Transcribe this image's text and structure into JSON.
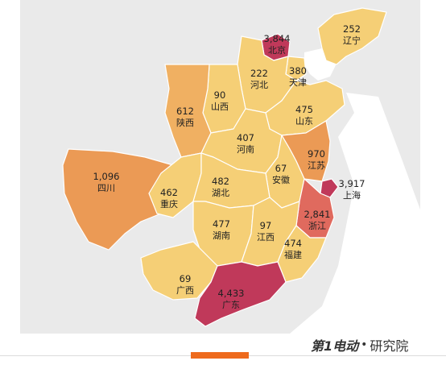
{
  "map": {
    "colors": {
      "low": "#f5cf76",
      "mid": "#f0b062",
      "high_orange": "#eb9a55",
      "red": "#e06a5e",
      "crimson": "#c0395a",
      "background": "#eaeaea",
      "sea": "#ffffff"
    },
    "provinces": [
      {
        "id": "beijing",
        "name": "北京",
        "value": "3,844",
        "color": "#c0395a"
      },
      {
        "id": "liaoning",
        "name": "辽宁",
        "value": "252",
        "color": "#f5cf76"
      },
      {
        "id": "tianjin",
        "name": "天津",
        "value": "380",
        "color": "#f5cf76"
      },
      {
        "id": "hebei",
        "name": "河北",
        "value": "222",
        "color": "#f5cf76"
      },
      {
        "id": "shanxi",
        "name": "山西",
        "value": "90",
        "color": "#f5cf76"
      },
      {
        "id": "shaanxi",
        "name": "陕西",
        "value": "612",
        "color": "#f0b062"
      },
      {
        "id": "shandong",
        "name": "山东",
        "value": "475",
        "color": "#f5cf76"
      },
      {
        "id": "henan",
        "name": "河南",
        "value": "407",
        "color": "#f5cf76"
      },
      {
        "id": "jiangsu",
        "name": "江苏",
        "value": "970",
        "color": "#eb9a55"
      },
      {
        "id": "anhui",
        "name": "安徽",
        "value": "67",
        "color": "#f5cf76"
      },
      {
        "id": "sichuan",
        "name": "四川",
        "value": "1,096",
        "color": "#eb9a55"
      },
      {
        "id": "chongqing",
        "name": "重庆",
        "value": "462",
        "color": "#f5cf76"
      },
      {
        "id": "hubei",
        "name": "湖北",
        "value": "482",
        "color": "#f5cf76"
      },
      {
        "id": "shanghai",
        "name": "上海",
        "value": "3,917",
        "color": "#c0395a"
      },
      {
        "id": "zhejiang",
        "name": "浙江",
        "value": "2,841",
        "color": "#e06a5e"
      },
      {
        "id": "hunan",
        "name": "湖南",
        "value": "477",
        "color": "#f5cf76"
      },
      {
        "id": "jiangxi",
        "name": "江西",
        "value": "97",
        "color": "#f5cf76"
      },
      {
        "id": "fujian",
        "name": "福建",
        "value": "474",
        "color": "#f5cf76"
      },
      {
        "id": "guangxi",
        "name": "广西",
        "value": "69",
        "color": "#f5cf76"
      },
      {
        "id": "guangdong",
        "name": "广东",
        "value": "4,433",
        "color": "#c0395a"
      }
    ]
  },
  "branding": {
    "logo_text": "第1电动",
    "logo_dot": "•",
    "logo_suffix": "研究院",
    "accent_bar_color": "#ee6a1c"
  }
}
